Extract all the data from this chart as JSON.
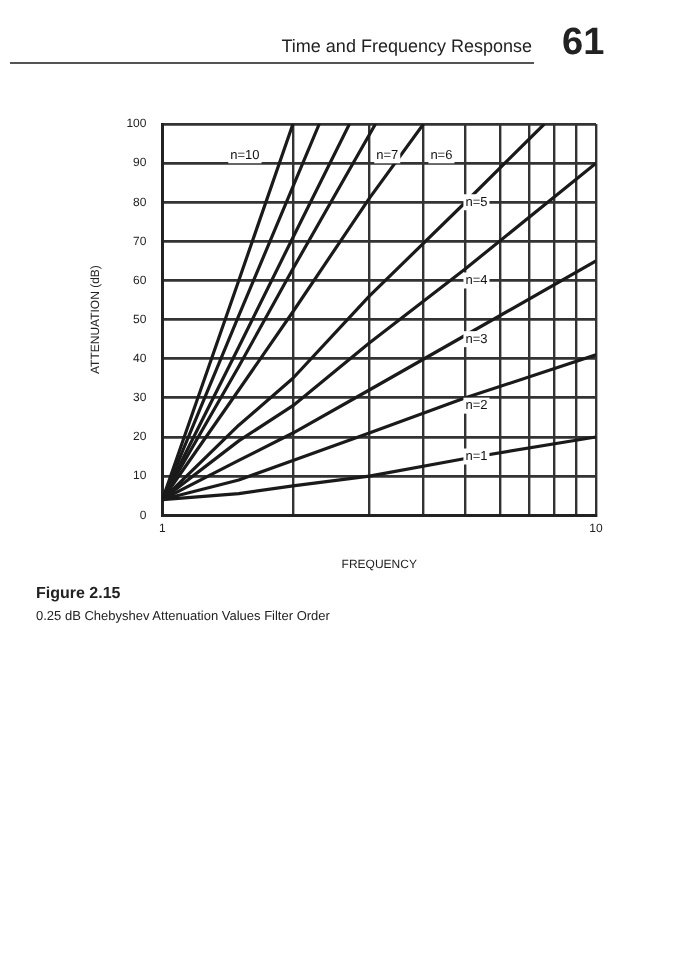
{
  "chart_data": {
    "type": "line",
    "xlabel": "FREQUENCY",
    "ylabel": "ATTENUATION (dB)",
    "log": "x",
    "grid": true,
    "legend": false,
    "marker": "none",
    "line_style": "solid",
    "xlim": [
      1,
      10
    ],
    "xticks": [
      1,
      {
        "value": 2,
        "label": null
      },
      {
        "value": 3,
        "label": null
      },
      {
        "value": 4,
        "label": null
      },
      {
        "value": 5,
        "label": null
      },
      {
        "value": 6,
        "label": null
      },
      {
        "value": 7,
        "label": null
      },
      {
        "value": 8,
        "label": null
      },
      {
        "value": 9,
        "label": null
      },
      10
    ],
    "ylim": [
      0,
      100
    ],
    "yticks": [
      0,
      10,
      20,
      30,
      40,
      50,
      60,
      70,
      80,
      90,
      100
    ],
    "series": [
      {
        "color": "#1a1a1a",
        "x": [
          1,
          1.5,
          2,
          3,
          5,
          10
        ],
        "values": [
          4,
          5.5,
          7.5,
          10,
          14.5,
          20
        ]
      },
      {
        "color": "#1a1a1a",
        "x": [
          1,
          1.5,
          2,
          3,
          5,
          10
        ],
        "values": [
          4,
          9,
          14,
          21,
          30,
          41
        ]
      },
      {
        "color": "#1a1a1a",
        "x": [
          1,
          1.5,
          2,
          3,
          5,
          10
        ],
        "values": [
          4,
          14,
          21,
          32,
          46,
          65
        ]
      },
      {
        "color": "#1a1a1a",
        "x": [
          1,
          1.5,
          2,
          3,
          5,
          10
        ],
        "values": [
          4,
          19,
          28,
          44,
          63,
          90
        ]
      },
      {
        "color": "#1a1a1a",
        "x": [
          1,
          1.5,
          2,
          3,
          5,
          7.6
        ],
        "values": [
          4,
          23,
          35,
          56,
          80,
          100
        ]
      },
      {
        "color": "#1a1a1a",
        "x": [
          1,
          1.5,
          2,
          3,
          4
        ],
        "values": [
          4,
          32,
          52,
          81,
          100
        ]
      },
      {
        "color": "#1a1a1a",
        "x": [
          1,
          1.5,
          2,
          3.1
        ],
        "values": [
          4,
          38,
          63,
          100
        ]
      },
      {
        "color": "#1a1a1a",
        "x": [
          1,
          1.5,
          2,
          2.7
        ],
        "values": [
          4,
          43,
          71,
          100
        ]
      },
      {
        "color": "#1a1a1a",
        "x": [
          1,
          1.5,
          2,
          2.3
        ],
        "values": [
          4,
          51,
          84,
          100
        ]
      },
      {
        "color": "#1a1a1a",
        "x": [
          1,
          1.5,
          2
        ],
        "values": [
          4,
          60,
          100
        ]
      }
    ],
    "annotations": [
      "Time and Frequency Response",
      "61",
      "Figure 2.15",
      "0.25 dB Chebyshev Attenuation Values Filter Order",
      {
        "text": "n=10",
        "x": 1.55,
        "y": 92
      },
      {
        "text": "n=7",
        "x": 3.3,
        "y": 92
      },
      {
        "text": "n=6",
        "x": 4.4,
        "y": 92
      },
      {
        "text": "n=5",
        "x": 5.3,
        "y": 80
      },
      {
        "text": "n=4",
        "x": 5.3,
        "y": 60
      },
      {
        "text": "n=3",
        "x": 5.3,
        "y": 45
      },
      {
        "text": "n=2",
        "x": 5.3,
        "y": 28
      },
      {
        "text": "n=1",
        "x": 5.3,
        "y": 15
      }
    ]
  }
}
